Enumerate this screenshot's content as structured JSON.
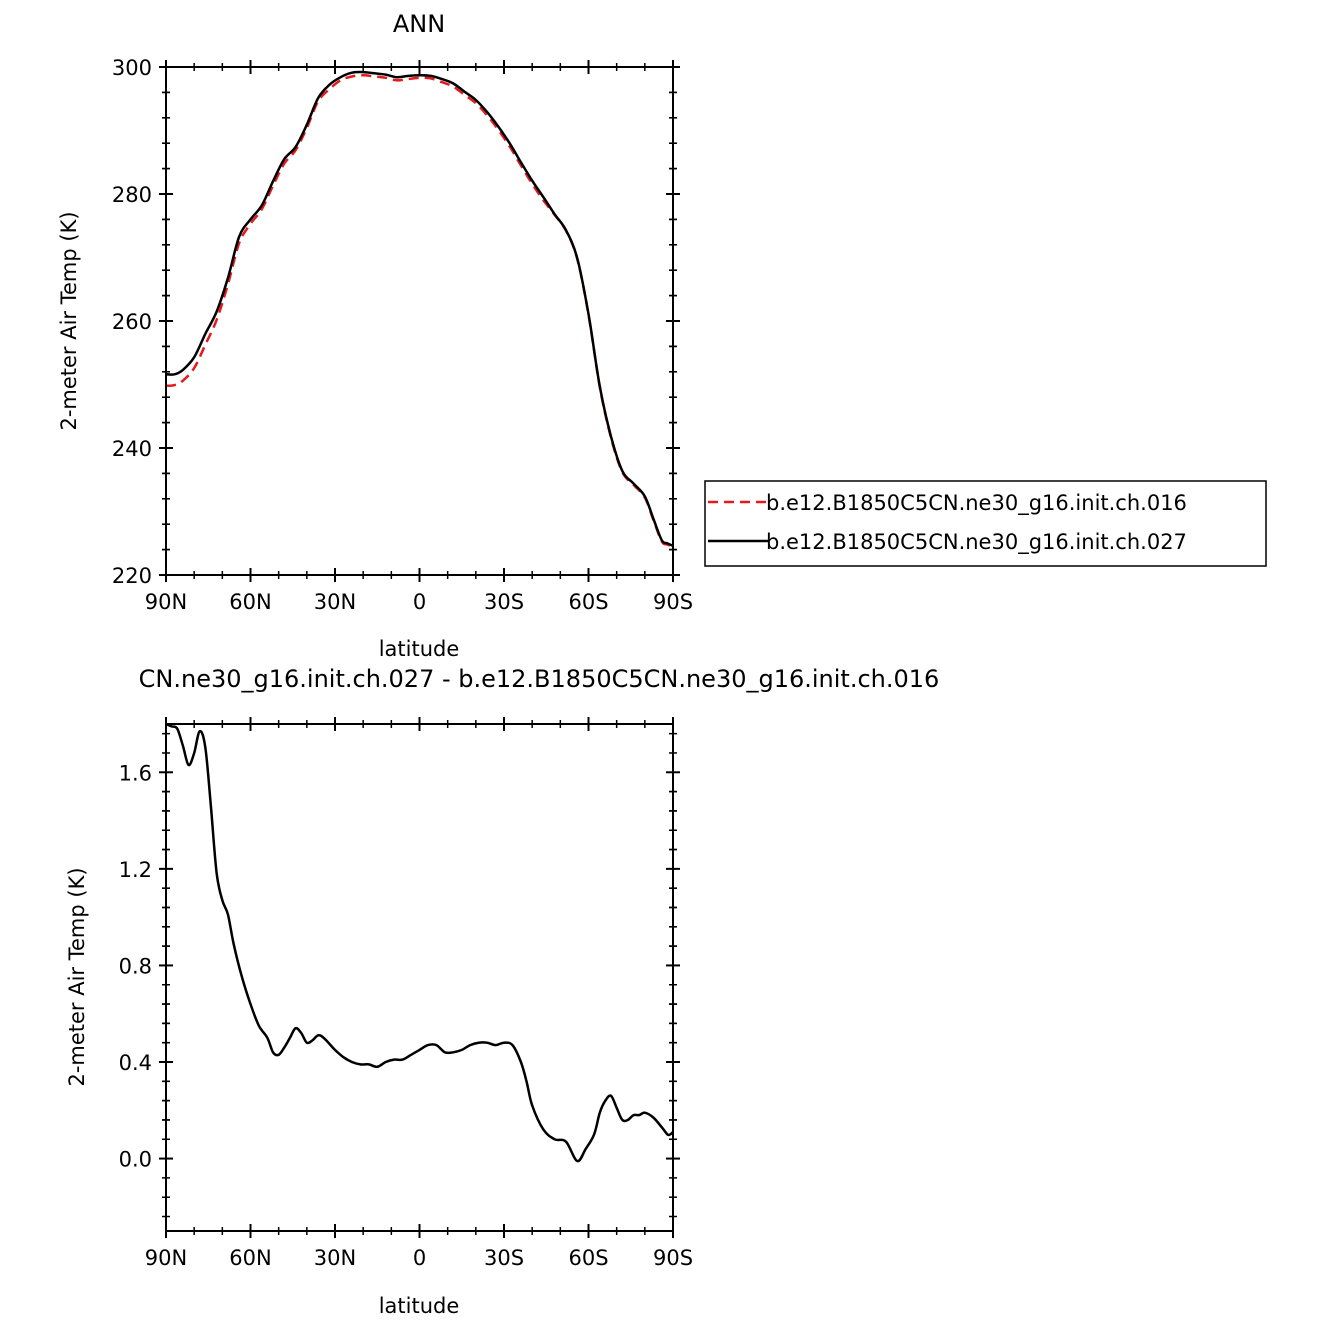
{
  "chart_data": [
    {
      "type": "line",
      "title": "ANN",
      "xlabel": "latitude",
      "ylabel": "2-meter Air Temp (K)",
      "xlim": [
        90,
        -90
      ],
      "ylim": [
        220,
        300
      ],
      "x_ticks": [
        90,
        60,
        30,
        0,
        -30,
        -60,
        -90
      ],
      "x_tick_labels": [
        "90N",
        "60N",
        "30N",
        "0",
        "30S",
        "60S",
        "90S"
      ],
      "y_ticks": [
        220,
        240,
        260,
        280,
        300
      ],
      "y_tick_labels": [
        "220",
        "240",
        "260",
        "280",
        "300"
      ],
      "grid": false,
      "legend_position": "right",
      "series": [
        {
          "name": "b.e12.B1850C5CN.ne30_g16.init.ch.016",
          "color": "#e41a1c",
          "dash": "dashed",
          "x": [
            90,
            87,
            84,
            80,
            76,
            72,
            68,
            64,
            60,
            56,
            52,
            48,
            44,
            40,
            36,
            32,
            28,
            24,
            20,
            16,
            12,
            8,
            4,
            0,
            -4,
            -8,
            -12,
            -16,
            -20,
            -24,
            -28,
            -32,
            -36,
            -40,
            -44,
            -48,
            -52,
            -56,
            -60,
            -64,
            -68,
            -72,
            -76,
            -80,
            -83,
            -86,
            -88,
            -90
          ],
          "y": [
            249.8,
            249.9,
            250.6,
            252.6,
            256.3,
            260.2,
            265.8,
            272.3,
            275.3,
            277.6,
            281.3,
            284.8,
            286.9,
            290.4,
            294.6,
            296.5,
            297.9,
            298.5,
            298.7,
            298.5,
            298.3,
            297.9,
            298.1,
            298.3,
            298.2,
            297.6,
            296.9,
            295.6,
            294.3,
            292.4,
            290.1,
            287.5,
            284.5,
            281.6,
            279.0,
            276.7,
            274.2,
            269.8,
            261.0,
            249.6,
            241.6,
            236.2,
            234.2,
            232.2,
            228.7,
            225.3,
            224.8,
            224.5
          ]
        },
        {
          "name": "b.e12.B1850C5CN.ne30_g16.init.ch.027",
          "color": "#000000",
          "dash": "solid",
          "x": [
            90,
            87,
            84,
            80,
            76,
            72,
            68,
            64,
            60,
            56,
            52,
            48,
            44,
            40,
            36,
            32,
            28,
            24,
            20,
            16,
            12,
            8,
            4,
            0,
            -4,
            -8,
            -12,
            -16,
            -20,
            -24,
            -28,
            -32,
            -36,
            -40,
            -44,
            -48,
            -52,
            -56,
            -60,
            -64,
            -68,
            -72,
            -76,
            -80,
            -83,
            -86,
            -88,
            -90
          ],
          "y": [
            251.6,
            251.6,
            252.3,
            254.3,
            258.0,
            261.5,
            266.8,
            273.3,
            276.0,
            278.2,
            282.0,
            285.5,
            287.4,
            290.9,
            295.1,
            297.2,
            298.4,
            299.1,
            299.2,
            299.0,
            298.8,
            298.4,
            298.6,
            298.7,
            298.6,
            298.1,
            297.4,
            296.1,
            294.8,
            292.9,
            290.6,
            288.0,
            285.0,
            282.1,
            279.5,
            276.8,
            274.3,
            269.9,
            261.1,
            249.7,
            241.8,
            236.4,
            234.4,
            232.4,
            228.9,
            225.5,
            225.0,
            224.6
          ]
        }
      ]
    },
    {
      "type": "line",
      "title": "CN.ne30_g16.init.ch.027  -  b.e12.B1850C5CN.ne30_g16.init.ch.016",
      "xlabel": "latitude",
      "ylabel": "2-meter Air Temp (K)",
      "xlim": [
        90,
        -90
      ],
      "ylim": [
        -0.3,
        1.8
      ],
      "x_ticks": [
        90,
        60,
        30,
        0,
        -30,
        -60,
        -90
      ],
      "x_tick_labels": [
        "90N",
        "60N",
        "30N",
        "0",
        "30S",
        "60S",
        "90S"
      ],
      "y_ticks": [
        0.0,
        0.4,
        0.8,
        1.2,
        1.6
      ],
      "y_tick_labels": [
        "0.0",
        "0.4",
        "0.8",
        "1.2",
        "1.6"
      ],
      "grid": false,
      "series": [
        {
          "color": "#000000",
          "dash": "solid",
          "x": [
            90,
            88,
            86,
            84,
            82,
            80,
            78,
            76,
            74,
            72,
            70,
            68,
            66,
            63,
            60,
            57,
            54,
            52,
            50,
            48,
            46,
            44,
            42,
            40,
            38,
            36,
            34,
            30,
            27,
            24,
            21,
            18,
            15,
            12,
            9,
            6,
            3,
            0,
            -3,
            -6,
            -9,
            -12,
            -15,
            -18,
            -21,
            -24,
            -27,
            -30,
            -33,
            -36,
            -38,
            -40,
            -44,
            -48,
            -52,
            -56,
            -59,
            -62,
            -64,
            -66,
            -68,
            -70,
            -72,
            -74,
            -76,
            -78,
            -80,
            -83,
            -86,
            -88,
            -89,
            -90
          ],
          "y": [
            1.8,
            1.79,
            1.78,
            1.71,
            1.63,
            1.68,
            1.77,
            1.7,
            1.45,
            1.18,
            1.07,
            1.01,
            0.89,
            0.75,
            0.64,
            0.55,
            0.5,
            0.44,
            0.43,
            0.46,
            0.5,
            0.54,
            0.52,
            0.48,
            0.49,
            0.51,
            0.5,
            0.45,
            0.42,
            0.4,
            0.39,
            0.39,
            0.38,
            0.4,
            0.41,
            0.41,
            0.43,
            0.45,
            0.47,
            0.47,
            0.44,
            0.44,
            0.45,
            0.47,
            0.48,
            0.48,
            0.47,
            0.48,
            0.47,
            0.4,
            0.32,
            0.22,
            0.12,
            0.08,
            0.07,
            -0.01,
            0.04,
            0.1,
            0.19,
            0.24,
            0.26,
            0.21,
            0.16,
            0.16,
            0.18,
            0.18,
            0.19,
            0.17,
            0.13,
            0.1,
            0.1,
            0.11
          ]
        }
      ]
    }
  ]
}
